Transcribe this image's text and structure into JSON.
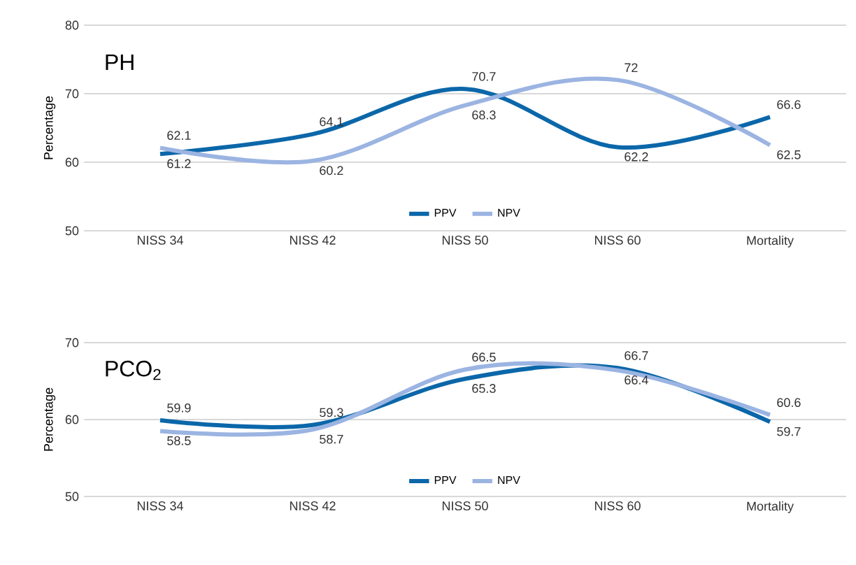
{
  "chart_data": [
    {
      "type": "line",
      "title": "PH",
      "ylabel": "Percentage",
      "categories": [
        "NISS 34",
        "NISS 42",
        "NISS 50",
        "NISS 60",
        "Mortality"
      ],
      "series": [
        {
          "name": "PPV",
          "color": "#0b67a9",
          "values": [
            61.2,
            64.1,
            70.7,
            62.2,
            66.6
          ]
        },
        {
          "name": "NPV",
          "color": "#9bb4e2",
          "values": [
            62.1,
            60.2,
            68.3,
            72,
            62.5
          ]
        }
      ],
      "ylim": [
        50,
        80
      ],
      "yticks": [
        50,
        60,
        70,
        80
      ],
      "grid": "y",
      "legend": "bottom",
      "data_labels": true
    },
    {
      "type": "line",
      "title": "PCO$_{2}$",
      "ylabel": "Percentage",
      "categories": [
        "NISS 34",
        "NISS 42",
        "NISS 50",
        "NISS 60",
        "Mortality"
      ],
      "series": [
        {
          "name": "PPV",
          "color": "#0b67a9",
          "values": [
            59.9,
            59.3,
            65.3,
            66.7,
            59.7
          ]
        },
        {
          "name": "NPV",
          "color": "#9bb4e2",
          "values": [
            58.5,
            58.7,
            66.5,
            66.4,
            60.6
          ]
        }
      ],
      "ylim": [
        50,
        70
      ],
      "yticks": [
        50,
        60,
        70
      ],
      "grid": "y",
      "legend": "bottom",
      "data_labels": true
    }
  ]
}
